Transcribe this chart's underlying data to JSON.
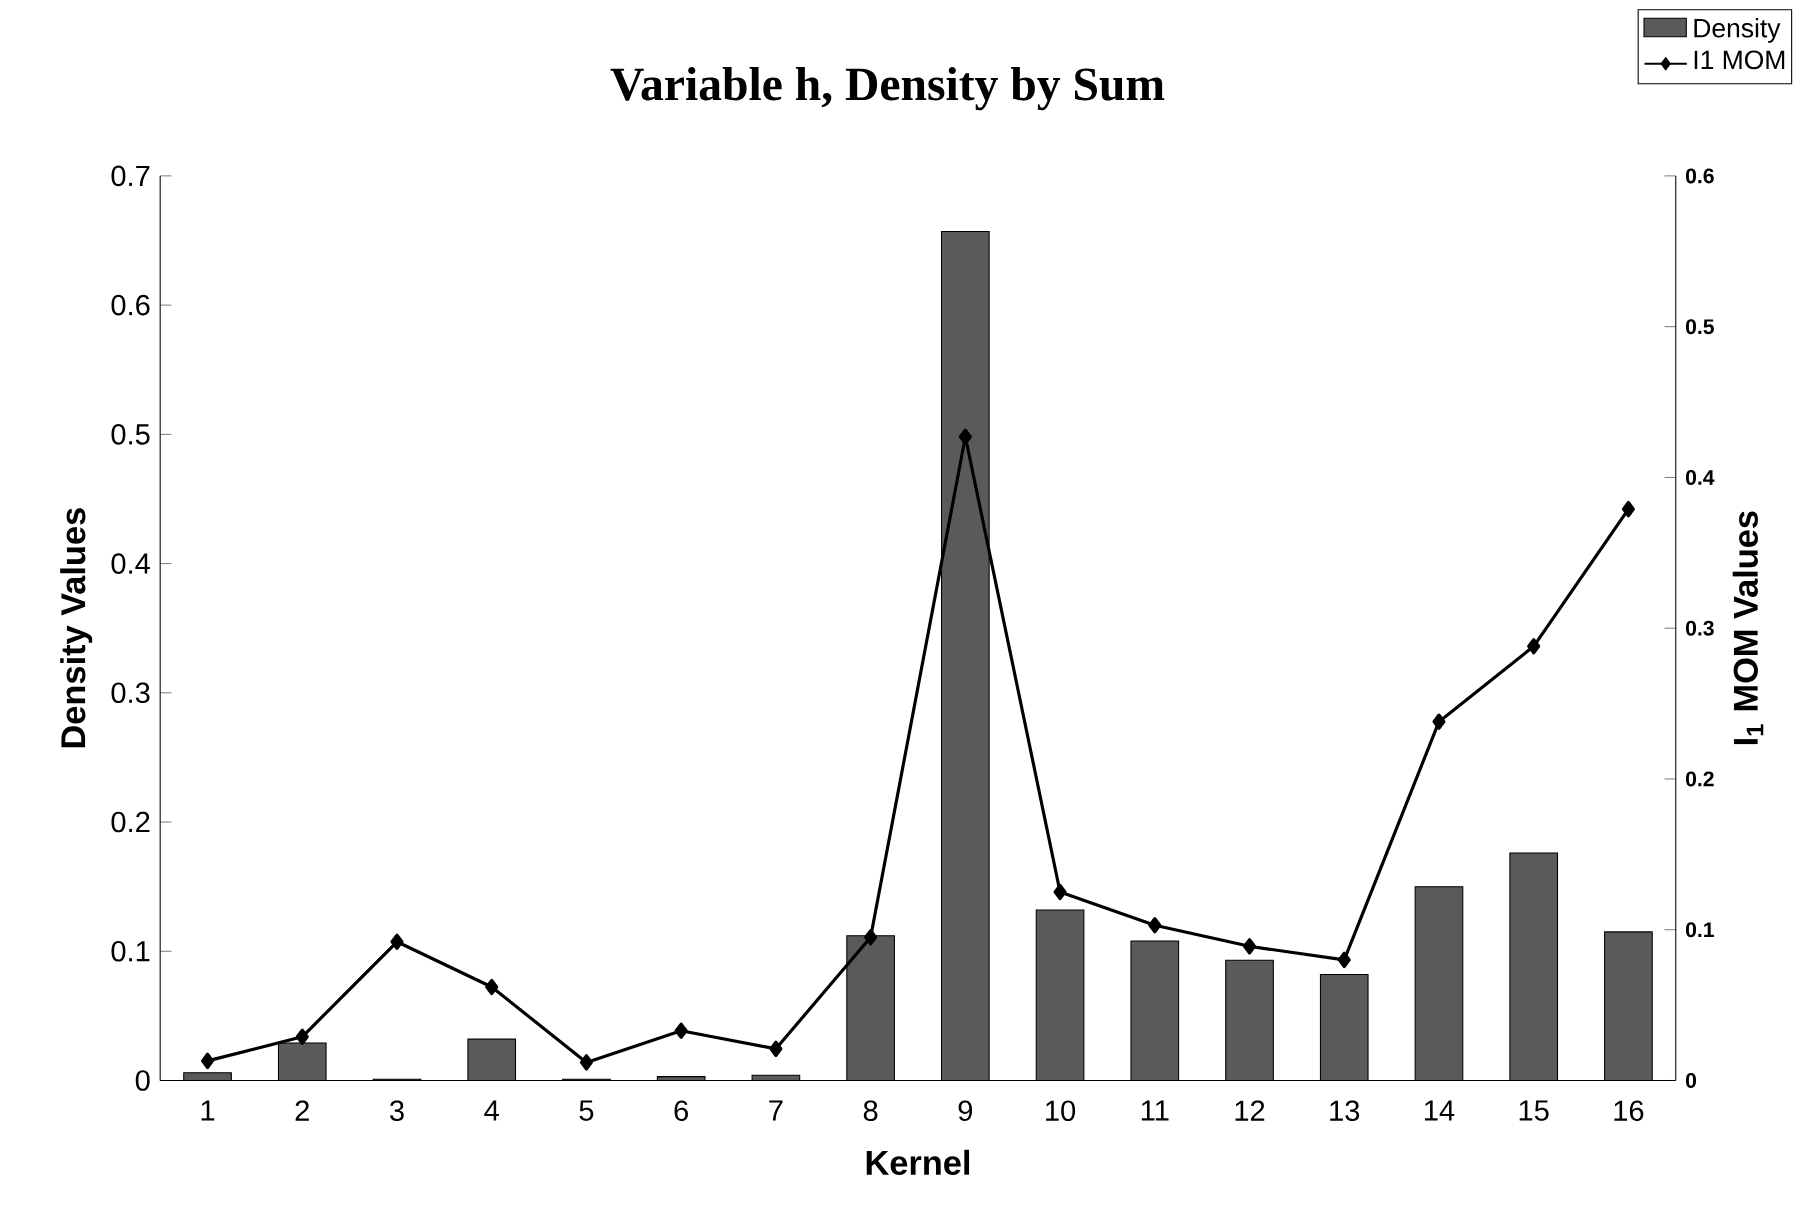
{
  "chart_data": {
    "type": "bar",
    "title": "Variable h, Density by Sum",
    "xlabel": "Kernel",
    "ylabel": "Density Values",
    "y2label": "I$_{1}$ MOM Values",
    "categories": [
      "1",
      "2",
      "3",
      "4",
      "5",
      "6",
      "7",
      "8",
      "9",
      "10",
      "11",
      "12",
      "13",
      "14",
      "15",
      "16"
    ],
    "series": [
      {
        "name": "Density",
        "color": "#5a5a5a",
        "values": [
          0.006,
          0.029,
          0.001,
          0.032,
          0.001,
          0.003,
          0.004,
          0.112,
          0.657,
          0.132,
          0.108,
          0.093,
          0.082,
          0.15,
          0.176,
          0.115
        ]
      },
      {
        "name": "I1 MOM",
        "type": "line",
        "axis": "y2",
        "color": "#000000",
        "values": [
          0.013,
          0.029,
          0.092,
          0.062,
          0.012,
          0.033,
          0.021,
          0.095,
          0.427,
          0.125,
          0.103,
          0.089,
          0.08,
          0.238,
          0.288,
          0.379
        ]
      }
    ],
    "ylim": [
      0,
      0.7
    ],
    "yticks": [
      0,
      0.1,
      0.2,
      0.3,
      0.4,
      0.5,
      0.6,
      0.7
    ],
    "y2lim": [
      0,
      0.6
    ],
    "y2ticks": [
      0,
      0.1,
      0.2,
      0.3,
      0.4,
      0.5,
      0.6
    ],
    "legend": "top right",
    "marker": "diamond"
  }
}
